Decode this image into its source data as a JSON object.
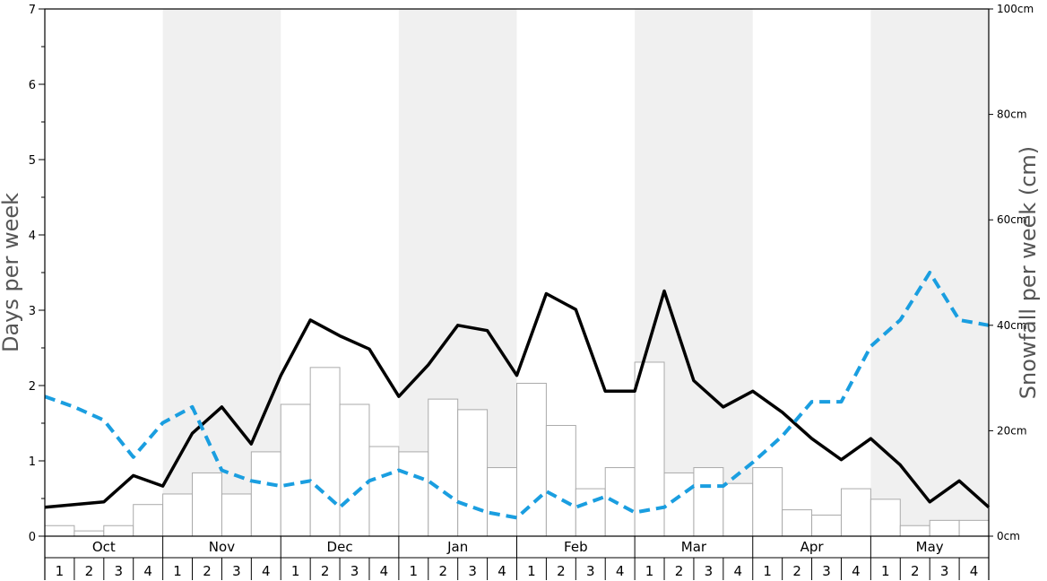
{
  "chart_data": {
    "type": "bar",
    "ylabel_left": "Days per week",
    "ylabel_right": "Snowfall per week (cm)",
    "left_axis": {
      "ylim": [
        0,
        7
      ],
      "ticks": [
        "0",
        "1",
        "2",
        "3",
        "4",
        "5",
        "6",
        "7"
      ]
    },
    "right_axis": {
      "ylim": [
        0,
        100
      ],
      "ticks": [
        "0cm",
        "20cm",
        "40cm",
        "60cm",
        "80cm",
        "100cm"
      ]
    },
    "months": [
      "Oct",
      "Nov",
      "Dec",
      "Jan",
      "Feb",
      "Mar",
      "Apr",
      "May"
    ],
    "week_labels": [
      "1",
      "2",
      "3",
      "4"
    ],
    "shaded_months": [
      "Nov",
      "Jan",
      "Mar",
      "May"
    ],
    "colors": {
      "bars": "#ffffff",
      "bar_border": "#aaaaaa",
      "shade": "#f0f0f0",
      "line_solid": "#000000",
      "line_dashed": "#1a9ee0"
    },
    "series": [
      {
        "type": "bar",
        "axis": "left",
        "values": [
          0.14,
          0.07,
          0.14,
          0.42,
          0.56,
          0.84,
          0.56,
          1.12,
          1.75,
          2.24,
          1.75,
          1.19,
          1.12,
          1.82,
          1.68,
          0.91,
          2.03,
          1.47,
          0.63,
          0.91,
          2.31,
          0.84,
          0.91,
          0.7,
          0.91,
          0.35,
          0.28,
          0.63,
          0.49,
          0.14,
          0.21,
          0.21
        ]
      },
      {
        "type": "line",
        "style": "solid",
        "axis": "right",
        "values": [
          5.5,
          6,
          6.5,
          11.5,
          9.5,
          19.5,
          24.5,
          17.5,
          30.5,
          41,
          38,
          35.5,
          26.5,
          32.5,
          40,
          39,
          30.5,
          46,
          43,
          27.5,
          27.5,
          46.5,
          29.5,
          24.5,
          27.5,
          23.5,
          18.5,
          14.5,
          18.5,
          13.5,
          6.5,
          10.5,
          5.5
        ]
      },
      {
        "type": "line",
        "style": "dashed",
        "axis": "right",
        "values": [
          26.5,
          24.5,
          22,
          15,
          21.5,
          24.5,
          12.5,
          10.5,
          9.5,
          10.5,
          5.5,
          10.5,
          12.5,
          10.5,
          6.5,
          4.5,
          3.5,
          8.5,
          5.5,
          7.5,
          4.5,
          5.5,
          9.5,
          9.5,
          14,
          19,
          25.5,
          25.5,
          36,
          41,
          50,
          41,
          40
        ]
      }
    ]
  }
}
